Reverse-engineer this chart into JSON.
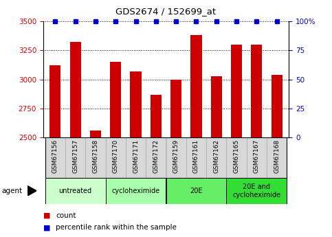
{
  "title": "GDS2674 / 152699_at",
  "samples": [
    "GSM67156",
    "GSM67157",
    "GSM67158",
    "GSM67170",
    "GSM67171",
    "GSM67172",
    "GSM67159",
    "GSM67161",
    "GSM67162",
    "GSM67165",
    "GSM67167",
    "GSM67168"
  ],
  "counts": [
    3120,
    3320,
    2560,
    3150,
    3070,
    2870,
    3000,
    3380,
    3030,
    3300,
    3300,
    3040
  ],
  "percentile_ranks": [
    100,
    100,
    100,
    100,
    100,
    100,
    100,
    100,
    100,
    100,
    100,
    100
  ],
  "bar_color": "#cc0000",
  "dot_color": "#0000cc",
  "ylim_left": [
    2500,
    3500
  ],
  "ylim_right": [
    0,
    100
  ],
  "yticks_left": [
    2500,
    2750,
    3000,
    3250,
    3500
  ],
  "yticks_right": [
    0,
    25,
    50,
    75,
    100
  ],
  "ytick_labels_left": [
    "2500",
    "2750",
    "3000",
    "3250",
    "3500"
  ],
  "ytick_labels_right": [
    "0",
    "25",
    "50",
    "75",
    "100%"
  ],
  "groups": [
    {
      "label": "untreated",
      "start": 0,
      "end": 3,
      "color": "#ccffcc"
    },
    {
      "label": "cycloheximide",
      "start": 3,
      "end": 6,
      "color": "#aaffaa"
    },
    {
      "label": "20E",
      "start": 6,
      "end": 9,
      "color": "#66ee66"
    },
    {
      "label": "20E and\ncycloheximide",
      "start": 9,
      "end": 12,
      "color": "#33dd33"
    }
  ],
  "agent_label": "agent",
  "legend_count_label": "count",
  "legend_percentile_label": "percentile rank within the sample",
  "background_color": "#ffffff",
  "bar_width": 0.55,
  "tick_label_color_left": "#cc0000",
  "tick_label_color_right": "#0000cc",
  "sample_cell_color": "#d8d8d8",
  "sample_cell_border": "#aaaaaa"
}
